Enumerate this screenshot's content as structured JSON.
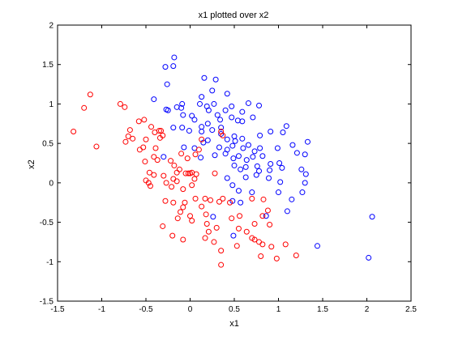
{
  "chart_data": {
    "type": "scatter",
    "title": "x1 plotted over x2",
    "xlabel": "x1",
    "ylabel": "x2",
    "xlim": [
      -1.5,
      2.5
    ],
    "ylim": [
      -1.5,
      2
    ],
    "xticks": [
      "-1.5",
      "-1",
      "-0.5",
      "0",
      "0.5",
      "1",
      "1.5",
      "2",
      "2.5"
    ],
    "yticks": [
      "-1.5",
      "-1",
      "-0.5",
      "0",
      "0.5",
      "1",
      "1.5",
      "2"
    ],
    "grid": false,
    "marker": "open circle",
    "series": [
      {
        "color": "#0000ff",
        "points": [
          [
            -0.28,
            1.47
          ],
          [
            -0.18,
            1.59
          ],
          [
            -0.19,
            1.48
          ],
          [
            -0.26,
            1.25
          ],
          [
            0.16,
            1.33
          ],
          [
            0.29,
            1.31
          ],
          [
            0.42,
            1.13
          ],
          [
            0.25,
            1.17
          ],
          [
            -0.41,
            1.06
          ],
          [
            -0.27,
            0.93
          ],
          [
            -0.25,
            0.92
          ],
          [
            -0.15,
            0.96
          ],
          [
            -0.1,
            0.95
          ],
          [
            -0.09,
            1.0
          ],
          [
            0.11,
            1.0
          ],
          [
            0.13,
            1.09
          ],
          [
            0.19,
            0.97
          ],
          [
            0.27,
            1.0
          ],
          [
            0.21,
            0.92
          ],
          [
            0.4,
            0.92
          ],
          [
            0.47,
            0.97
          ],
          [
            0.59,
            0.9
          ],
          [
            0.66,
            1.01
          ],
          [
            0.78,
            0.98
          ],
          [
            0.02,
            0.85
          ],
          [
            -0.08,
            0.86
          ],
          [
            -0.09,
            0.7
          ],
          [
            0.05,
            0.8
          ],
          [
            0.13,
            0.71
          ],
          [
            0.2,
            0.75
          ],
          [
            0.31,
            0.86
          ],
          [
            0.34,
            0.8
          ],
          [
            0.47,
            0.83
          ],
          [
            0.54,
            0.79
          ],
          [
            0.59,
            0.78
          ],
          [
            0.71,
            0.83
          ],
          [
            1.09,
            0.72
          ],
          [
            -0.19,
            0.7
          ],
          [
            -0.01,
            0.66
          ],
          [
            0.13,
            0.65
          ],
          [
            0.25,
            0.67
          ],
          [
            0.35,
            0.7
          ],
          [
            0.35,
            0.62
          ],
          [
            0.42,
            0.55
          ],
          [
            0.5,
            0.59
          ],
          [
            0.59,
            0.56
          ],
          [
            0.79,
            0.6
          ],
          [
            0.91,
            0.65
          ],
          [
            1.05,
            0.64
          ],
          [
            1.33,
            0.52
          ],
          [
            -0.07,
            0.45
          ],
          [
            0.05,
            0.44
          ],
          [
            0.15,
            0.51
          ],
          [
            0.2,
            0.54
          ],
          [
            0.33,
            0.45
          ],
          [
            0.42,
            0.42
          ],
          [
            0.48,
            0.47
          ],
          [
            0.51,
            0.53
          ],
          [
            0.6,
            0.44
          ],
          [
            0.66,
            0.48
          ],
          [
            0.73,
            0.4
          ],
          [
            0.79,
            0.44
          ],
          [
            0.99,
            0.44
          ],
          [
            1.16,
            0.48
          ],
          [
            1.21,
            0.38
          ],
          [
            -0.3,
            0.33
          ],
          [
            0.12,
            0.32
          ],
          [
            0.28,
            0.35
          ],
          [
            0.4,
            0.37
          ],
          [
            0.49,
            0.31
          ],
          [
            0.55,
            0.34
          ],
          [
            0.64,
            0.29
          ],
          [
            0.71,
            0.33
          ],
          [
            0.82,
            0.34
          ],
          [
            0.91,
            0.24
          ],
          [
            1.01,
            0.25
          ],
          [
            1.3,
            0.36
          ],
          [
            0.5,
            0.22
          ],
          [
            0.57,
            0.17
          ],
          [
            0.63,
            0.2
          ],
          [
            0.76,
            0.21
          ],
          [
            0.78,
            0.15
          ],
          [
            0.9,
            0.16
          ],
          [
            1.04,
            0.19
          ],
          [
            1.26,
            0.17
          ],
          [
            1.31,
            0.11
          ],
          [
            0.42,
            0.06
          ],
          [
            0.63,
            0.07
          ],
          [
            0.75,
            0.1
          ],
          [
            0.89,
            0.06
          ],
          [
            1.02,
            0.01
          ],
          [
            1.3,
            0.0
          ],
          [
            0.48,
            -0.03
          ],
          [
            0.55,
            -0.1
          ],
          [
            0.7,
            -0.12
          ],
          [
            1.0,
            -0.12
          ],
          [
            1.27,
            -0.12
          ],
          [
            0.57,
            -0.25
          ],
          [
            0.48,
            -0.23
          ],
          [
            1.15,
            -0.21
          ],
          [
            1.1,
            -0.36
          ],
          [
            0.86,
            -0.42
          ],
          [
            0.26,
            -0.43
          ],
          [
            1.44,
            -0.8
          ],
          [
            2.06,
            -0.43
          ],
          [
            2.02,
            -0.95
          ],
          [
            0.49,
            -0.67
          ]
        ]
      },
      {
        "color": "#ff0000",
        "points": [
          [
            -1.13,
            1.12
          ],
          [
            -1.2,
            0.95
          ],
          [
            -0.79,
            1.0
          ],
          [
            -1.32,
            0.65
          ],
          [
            -1.06,
            0.46
          ],
          [
            -0.74,
            0.96
          ],
          [
            -0.73,
            0.52
          ],
          [
            -0.7,
            0.59
          ],
          [
            -0.65,
            0.56
          ],
          [
            -0.58,
            0.78
          ],
          [
            -0.52,
            0.8
          ],
          [
            -0.68,
            0.67
          ],
          [
            -0.53,
            0.45
          ],
          [
            -0.57,
            0.42
          ],
          [
            -0.4,
            0.64
          ],
          [
            -0.35,
            0.66
          ],
          [
            -0.39,
            0.44
          ],
          [
            -0.41,
            0.33
          ],
          [
            -0.51,
            0.27
          ],
          [
            -0.5,
            0.55
          ],
          [
            -0.44,
            0.71
          ],
          [
            -0.33,
            0.66
          ],
          [
            -0.31,
            0.6
          ],
          [
            -0.37,
            0.29
          ],
          [
            -0.34,
            0.57
          ],
          [
            -0.46,
            0.13
          ],
          [
            -0.5,
            0.03
          ],
          [
            -0.47,
            0.0
          ],
          [
            -0.41,
            0.1
          ],
          [
            -0.45,
            -0.04
          ],
          [
            -0.3,
            0.09
          ],
          [
            -0.27,
            0.0
          ],
          [
            -0.22,
            0.28
          ],
          [
            -0.18,
            0.22
          ],
          [
            -0.15,
            0.13
          ],
          [
            -0.12,
            0.17
          ],
          [
            -0.1,
            0.37
          ],
          [
            -0.05,
            0.12
          ],
          [
            -0.02,
            0.12
          ],
          [
            0.0,
            0.12
          ],
          [
            0.02,
            0.13
          ],
          [
            -0.03,
            0.31
          ],
          [
            0.06,
            0.36
          ],
          [
            0.1,
            0.42
          ],
          [
            0.13,
            0.55
          ],
          [
            0.05,
            0.05
          ],
          [
            -0.21,
            -0.05
          ],
          [
            -0.19,
            0.05
          ],
          [
            -0.15,
            0.02
          ],
          [
            -0.08,
            -0.08
          ],
          [
            0.02,
            -0.03
          ],
          [
            0.07,
            0.11
          ],
          [
            0.28,
            0.12
          ],
          [
            0.37,
            0.6
          ],
          [
            0.35,
            0.65
          ],
          [
            -0.28,
            -0.23
          ],
          [
            -0.19,
            -0.25
          ],
          [
            -0.06,
            -0.25
          ],
          [
            0.06,
            -0.2
          ],
          [
            0.13,
            -0.3
          ],
          [
            0.17,
            -0.2
          ],
          [
            0.23,
            -0.22
          ],
          [
            0.33,
            -0.24
          ],
          [
            0.37,
            -0.2
          ],
          [
            0.45,
            -0.25
          ],
          [
            0.7,
            -0.2
          ],
          [
            0.83,
            -0.21
          ],
          [
            0.88,
            -0.35
          ],
          [
            0.82,
            -0.42
          ],
          [
            0.18,
            -0.4
          ],
          [
            -0.14,
            -0.45
          ],
          [
            -0.11,
            -0.37
          ],
          [
            -0.08,
            -0.31
          ],
          [
            0.0,
            -0.42
          ],
          [
            0.02,
            -0.48
          ],
          [
            0.19,
            -0.52
          ],
          [
            0.56,
            -0.42
          ],
          [
            0.47,
            -0.45
          ],
          [
            0.3,
            -0.57
          ],
          [
            0.27,
            -0.75
          ],
          [
            -0.31,
            -0.55
          ],
          [
            -0.2,
            -0.67
          ],
          [
            -0.08,
            -0.72
          ],
          [
            0.17,
            -0.7
          ],
          [
            0.21,
            -0.62
          ],
          [
            0.55,
            -0.58
          ],
          [
            0.64,
            -0.62
          ],
          [
            0.7,
            -0.7
          ],
          [
            0.73,
            -0.72
          ],
          [
            0.78,
            -0.75
          ],
          [
            0.82,
            -0.78
          ],
          [
            0.92,
            -0.81
          ],
          [
            1.08,
            -0.78
          ],
          [
            0.9,
            -0.53
          ],
          [
            0.73,
            -0.52
          ],
          [
            0.53,
            -0.8
          ],
          [
            0.35,
            -0.86
          ],
          [
            0.8,
            -0.93
          ],
          [
            0.98,
            -0.96
          ],
          [
            1.2,
            -0.92
          ],
          [
            0.35,
            -1.04
          ]
        ]
      }
    ]
  }
}
